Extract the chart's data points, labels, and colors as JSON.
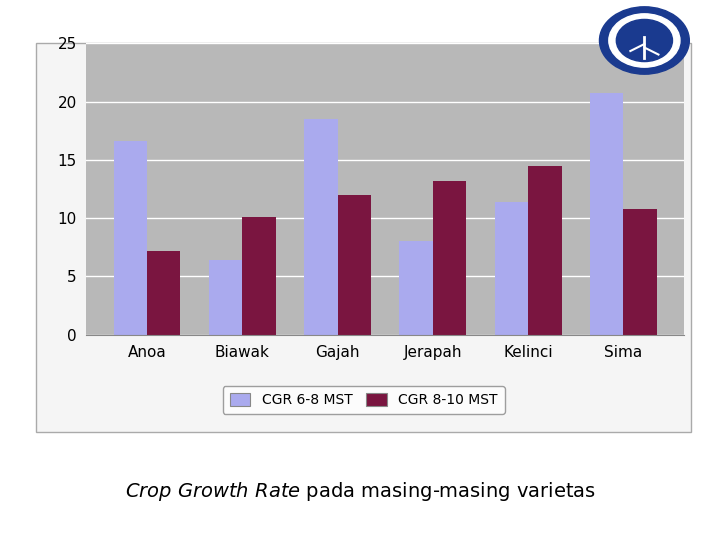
{
  "categories": [
    "Anoa",
    "Biawak",
    "Gajah",
    "Jerapah",
    "Kelinci",
    "Sima"
  ],
  "cgr_6_8": [
    16.6,
    6.4,
    18.5,
    8.0,
    11.4,
    20.7
  ],
  "cgr_8_10": [
    7.2,
    10.1,
    12.0,
    13.2,
    14.5,
    10.8
  ],
  "color_6_8": "#aaaaee",
  "color_8_10": "#7a1540",
  "ylim": [
    0,
    25
  ],
  "yticks": [
    0,
    5,
    10,
    15,
    20,
    25
  ],
  "legend_6_8": "CGR 6-8 MST",
  "legend_8_10": "CGR 8-10 MST",
  "plot_bg": "#b8b8b8",
  "fig_bg": "#ffffff",
  "outer_box_bg": "#f5f5f5",
  "bar_width": 0.35,
  "caption_fontsize": 14,
  "tick_fontsize": 11,
  "legend_fontsize": 10
}
